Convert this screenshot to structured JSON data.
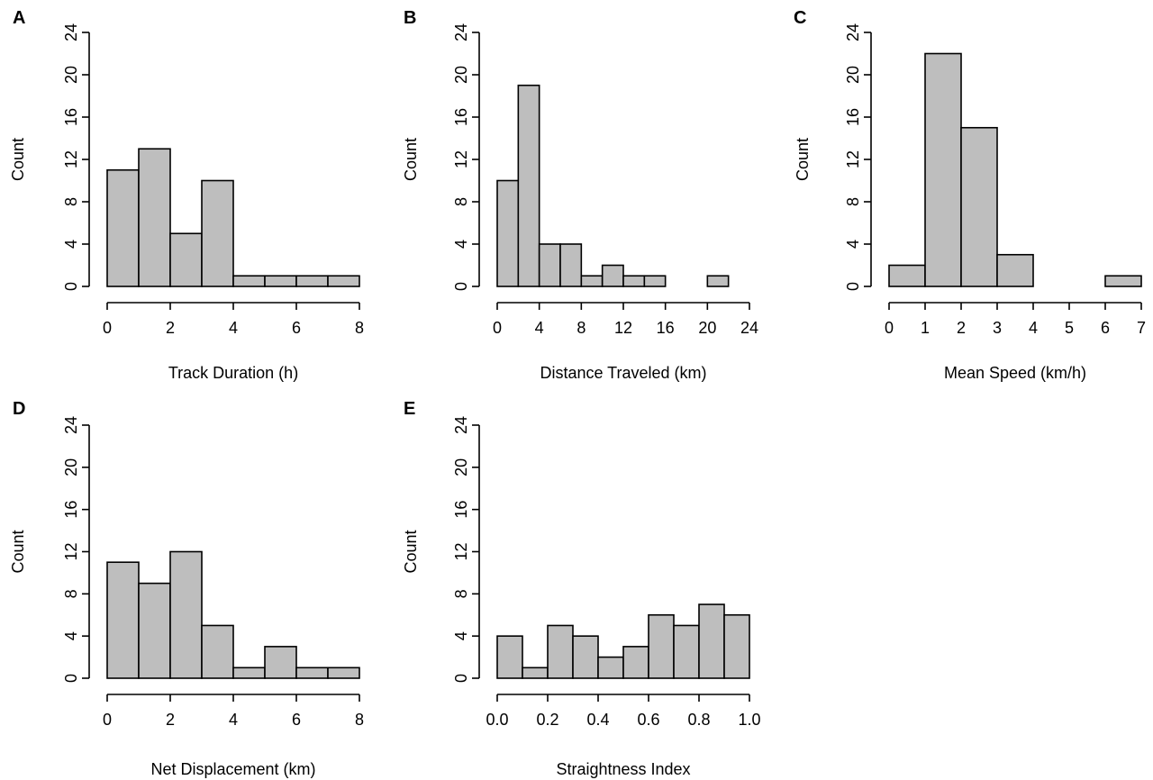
{
  "chart_data": [
    {
      "type": "bar",
      "panel_label": "A",
      "xlabel": "Track Duration (h)",
      "ylabel": "Count",
      "bin_edges": [
        0,
        1,
        2,
        3,
        4,
        5,
        6,
        7,
        8
      ],
      "values": [
        11,
        13,
        5,
        10,
        1,
        1,
        1,
        1
      ],
      "xlim": [
        0,
        8
      ],
      "ylim": [
        0,
        24
      ],
      "x_ticks": [
        "0",
        "2",
        "4",
        "6",
        "8"
      ],
      "y_ticks": [
        "0",
        "4",
        "8",
        "12",
        "16",
        "20",
        "24"
      ]
    },
    {
      "type": "bar",
      "panel_label": "B",
      "xlabel": "Distance Traveled (km)",
      "ylabel": "Count",
      "bin_edges": [
        0,
        2,
        4,
        6,
        8,
        10,
        12,
        14,
        16,
        18,
        20,
        22
      ],
      "values": [
        10,
        19,
        4,
        4,
        1,
        2,
        1,
        1,
        0,
        0,
        1
      ],
      "xlim": [
        0,
        24
      ],
      "ylim": [
        0,
        24
      ],
      "x_ticks": [
        "0",
        "4",
        "8",
        "12",
        "16",
        "20",
        "24"
      ],
      "y_ticks": [
        "0",
        "4",
        "8",
        "12",
        "16",
        "20",
        "24"
      ]
    },
    {
      "type": "bar",
      "panel_label": "C",
      "xlabel": "Mean Speed (km/h)",
      "ylabel": "Count",
      "bin_edges": [
        0,
        1,
        2,
        3,
        4,
        5,
        6,
        7
      ],
      "values": [
        2,
        22,
        15,
        3,
        0,
        0,
        1
      ],
      "xlim": [
        0,
        7
      ],
      "ylim": [
        0,
        24
      ],
      "x_ticks": [
        "0",
        "1",
        "2",
        "3",
        "4",
        "5",
        "6",
        "7"
      ],
      "y_ticks": [
        "0",
        "4",
        "8",
        "12",
        "16",
        "20",
        "24"
      ]
    },
    {
      "type": "bar",
      "panel_label": "D",
      "xlabel": "Net Displacement (km)",
      "ylabel": "Count",
      "bin_edges": [
        0,
        1,
        2,
        3,
        4,
        5,
        6,
        7,
        8
      ],
      "values": [
        11,
        9,
        12,
        5,
        1,
        3,
        1,
        1
      ],
      "xlim": [
        0,
        8
      ],
      "ylim": [
        0,
        24
      ],
      "x_ticks": [
        "0",
        "2",
        "4",
        "6",
        "8"
      ],
      "y_ticks": [
        "0",
        "4",
        "8",
        "12",
        "16",
        "20",
        "24"
      ]
    },
    {
      "type": "bar",
      "panel_label": "E",
      "xlabel": "Straightness Index",
      "ylabel": "Count",
      "bin_edges": [
        0.0,
        0.1,
        0.2,
        0.3,
        0.4,
        0.5,
        0.6,
        0.7,
        0.8,
        0.9,
        1.0
      ],
      "values": [
        4,
        1,
        5,
        4,
        2,
        3,
        6,
        5,
        7,
        6
      ],
      "xlim": [
        0,
        1
      ],
      "ylim": [
        0,
        24
      ],
      "x_ticks": [
        "0.0",
        "0.2",
        "0.4",
        "0.6",
        "0.8",
        "1.0"
      ],
      "y_ticks": [
        "0",
        "4",
        "8",
        "12",
        "16",
        "20",
        "24"
      ]
    }
  ]
}
